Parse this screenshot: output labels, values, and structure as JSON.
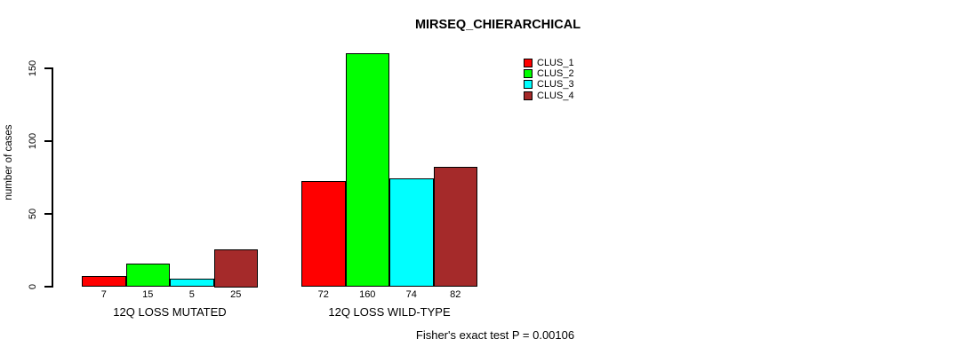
{
  "chart_data": {
    "type": "bar",
    "title": "MIRSEQ_CHIERARCHICAL",
    "ylabel": "number of cases",
    "xlabel": "",
    "categories": [
      "12Q LOSS MUTATED",
      "12Q LOSS WILD-TYPE"
    ],
    "series": [
      {
        "name": "CLUS_1",
        "color": "#ff0000",
        "values": [
          7,
          72
        ]
      },
      {
        "name": "CLUS_2",
        "color": "#00ff00",
        "values": [
          15,
          160
        ]
      },
      {
        "name": "CLUS_3",
        "color": "#00ffff",
        "values": [
          5,
          74
        ]
      },
      {
        "name": "CLUS_4",
        "color": "#a52a2a",
        "values": [
          25,
          82
        ]
      }
    ],
    "yticks": [
      0,
      50,
      100,
      150
    ],
    "ylim": [
      0,
      160
    ],
    "grid": false,
    "bar_value_labels_shown": true,
    "legend": {
      "position": "top-right-inside",
      "entries": [
        "CLUS_1",
        "CLUS_2",
        "CLUS_3",
        "CLUS_4"
      ]
    },
    "annotation": "Fisher's exact test P = 0.00106"
  },
  "colors": {
    "background": "#ffffff",
    "axis": "#000000",
    "bar_border": "#000000",
    "text": "#000000"
  }
}
